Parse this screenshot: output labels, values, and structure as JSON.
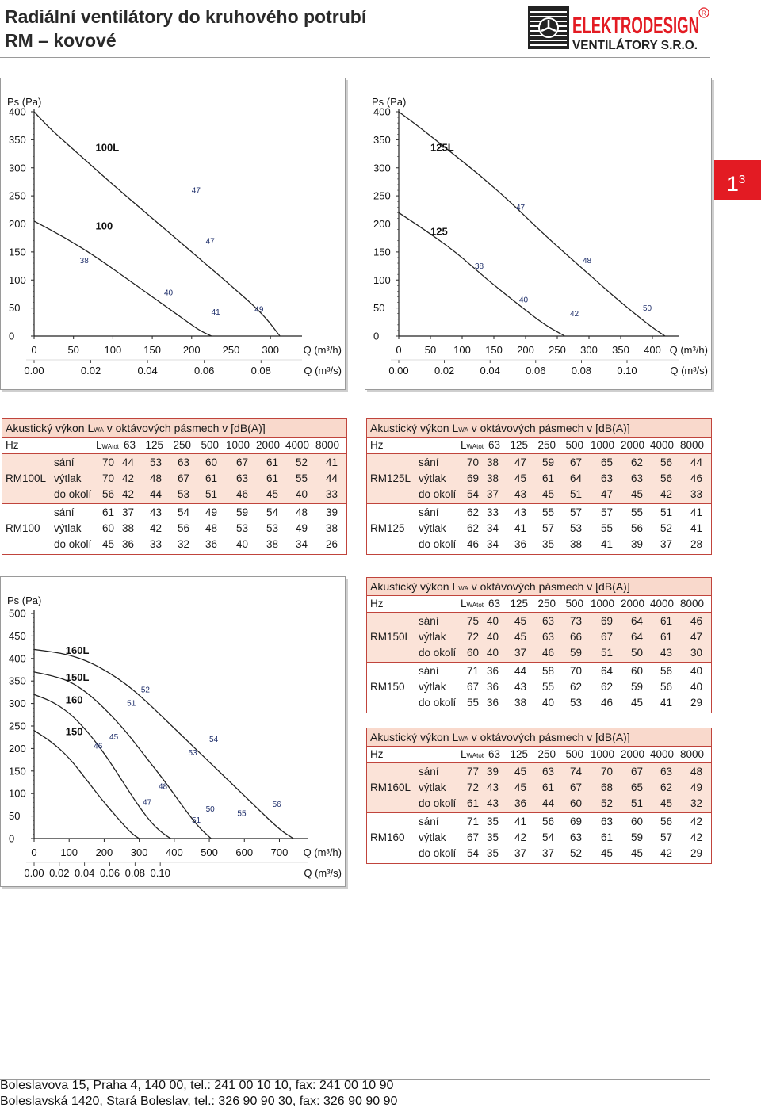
{
  "header": {
    "title_line1": "Radiální ventilátory do kruhového potrubí",
    "title_line2": "RM – kovové",
    "logo_brand": "ELEKTRODESIGN",
    "logo_sub": "VENTILÁTORY S.R.O.",
    "logo_registered": "R"
  },
  "page_badge": {
    "main": "1",
    "sup": "3"
  },
  "chart_data": [
    {
      "type": "line",
      "ylabel": "Ps (Pa)",
      "y_ticks": [
        "0",
        "50",
        "100",
        "150",
        "200",
        "250",
        "300",
        "350",
        "400"
      ],
      "x_ticks_m3h": [
        "0",
        "50",
        "100",
        "150",
        "200",
        "250",
        "300"
      ],
      "x_label_m3h": "Q (m³/h)",
      "x_ticks_m3s": [
        "0.00",
        "0.02",
        "0.04",
        "0.06",
        "0.08"
      ],
      "x_label_m3s": "Q (m³/s)",
      "xlim": [
        0,
        330
      ],
      "ylim": [
        0,
        400
      ],
      "series": [
        {
          "name": "100L",
          "x": [
            0,
            20,
            60,
            100,
            150,
            200,
            250,
            290,
            312
          ],
          "y": [
            400,
            370,
            320,
            270,
            210,
            150,
            90,
            40,
            0
          ]
        },
        {
          "name": "100",
          "x": [
            0,
            40,
            80,
            120,
            160,
            190,
            210,
            225
          ],
          "y": [
            205,
            175,
            140,
            100,
            60,
            30,
            10,
            0
          ]
        }
      ],
      "annotations": [
        {
          "text": "100L",
          "x": 78,
          "y": 330
        },
        {
          "text": "100",
          "x": 78,
          "y": 190
        },
        {
          "text": "47",
          "x": 200,
          "y": 255
        },
        {
          "text": "47",
          "x": 218,
          "y": 165
        },
        {
          "text": "38",
          "x": 58,
          "y": 130
        },
        {
          "text": "40",
          "x": 165,
          "y": 73
        },
        {
          "text": "41",
          "x": 225,
          "y": 38
        },
        {
          "text": "49",
          "x": 280,
          "y": 43
        }
      ]
    },
    {
      "type": "line",
      "ylabel": "Ps (Pa)",
      "y_ticks": [
        "0",
        "50",
        "100",
        "150",
        "200",
        "250",
        "300",
        "350",
        "400"
      ],
      "x_ticks_m3h": [
        "0",
        "50",
        "100",
        "150",
        "200",
        "250",
        "300",
        "350",
        "400"
      ],
      "x_label_m3h": "Q (m³/h)",
      "x_ticks_m3s": [
        "0.00",
        "0.02",
        "0.04",
        "0.06",
        "0.08",
        "0.10"
      ],
      "x_label_m3s": "Q (m³/s)",
      "xlim": [
        0,
        430
      ],
      "ylim": [
        0,
        400
      ],
      "series": [
        {
          "name": "125L",
          "x": [
            0,
            30,
            80,
            130,
            180,
            230,
            290,
            350,
            400,
            420
          ],
          "y": [
            400,
            375,
            330,
            285,
            235,
            180,
            120,
            60,
            15,
            0
          ]
        },
        {
          "name": "125",
          "x": [
            0,
            40,
            90,
            140,
            190,
            230,
            262
          ],
          "y": [
            220,
            190,
            150,
            100,
            55,
            20,
            0
          ]
        }
      ],
      "annotations": [
        {
          "text": "125L",
          "x": 50,
          "y": 330
        },
        {
          "text": "125",
          "x": 50,
          "y": 180
        },
        {
          "text": "47",
          "x": 185,
          "y": 225
        },
        {
          "text": "48",
          "x": 290,
          "y": 130
        },
        {
          "text": "38",
          "x": 120,
          "y": 120
        },
        {
          "text": "40",
          "x": 190,
          "y": 60
        },
        {
          "text": "42",
          "x": 270,
          "y": 35
        },
        {
          "text": "50",
          "x": 385,
          "y": 45
        }
      ]
    },
    {
      "type": "line",
      "ylabel": "Ps (Pa)",
      "y_ticks": [
        "0",
        "50",
        "100",
        "150",
        "200",
        "250",
        "300",
        "350",
        "400",
        "450",
        "500"
      ],
      "x_ticks_m3h": [
        "0",
        "100",
        "200",
        "300",
        "400",
        "500",
        "600",
        "700"
      ],
      "x_label_m3h": "Q (m³/h)",
      "x_ticks_m3s": [
        "0.00",
        "0.02",
        "0.04",
        "0.06",
        "0.08",
        "0.10"
      ],
      "x_label_m3s": "Q (m³/s)",
      "xlim": [
        0,
        760
      ],
      "ylim": [
        0,
        500
      ],
      "series": [
        {
          "name": "160L",
          "x": [
            0,
            50,
            100,
            150,
            200,
            260,
            320,
            380,
            440,
            500,
            560,
            620,
            700,
            740
          ],
          "y": [
            420,
            415,
            408,
            395,
            375,
            345,
            305,
            260,
            215,
            170,
            125,
            80,
            20,
            0
          ]
        },
        {
          "name": "150L",
          "x": [
            0,
            50,
            100,
            150,
            200,
            260,
            320,
            380,
            430,
            470,
            505
          ],
          "y": [
            370,
            362,
            350,
            325,
            290,
            240,
            180,
            120,
            65,
            25,
            0
          ]
        },
        {
          "name": "160",
          "x": [
            0,
            50,
            100,
            150,
            200,
            250,
            300,
            340,
            370,
            390
          ],
          "y": [
            320,
            305,
            280,
            240,
            190,
            130,
            70,
            30,
            10,
            0
          ]
        },
        {
          "name": "150",
          "x": [
            0,
            50,
            100,
            150,
            200,
            250,
            280,
            300
          ],
          "y": [
            240,
            215,
            180,
            130,
            80,
            35,
            10,
            0
          ]
        }
      ],
      "annotations": [
        {
          "text": "160L",
          "x": 90,
          "y": 410
        },
        {
          "text": "150L",
          "x": 90,
          "y": 350
        },
        {
          "text": "160",
          "x": 90,
          "y": 300
        },
        {
          "text": "150",
          "x": 90,
          "y": 230
        },
        {
          "text": "52",
          "x": 305,
          "y": 325
        },
        {
          "text": "51",
          "x": 265,
          "y": 295
        },
        {
          "text": "45",
          "x": 215,
          "y": 220
        },
        {
          "text": "46",
          "x": 170,
          "y": 200
        },
        {
          "text": "54",
          "x": 500,
          "y": 215
        },
        {
          "text": "53",
          "x": 440,
          "y": 185
        },
        {
          "text": "48",
          "x": 355,
          "y": 110
        },
        {
          "text": "47",
          "x": 310,
          "y": 75
        },
        {
          "text": "50",
          "x": 490,
          "y": 60
        },
        {
          "text": "55",
          "x": 580,
          "y": 50
        },
        {
          "text": "56",
          "x": 680,
          "y": 70
        },
        {
          "text": "51",
          "x": 450,
          "y": 35
        }
      ]
    }
  ],
  "tables": [
    {
      "title_prefix": "Akustický výkon L",
      "title_sub": "WA",
      "title_suffix": " v oktávových pásmech v [dB(A)]",
      "hz_label": "Hz",
      "lw_prefix": "L",
      "lw_sub": "WAtot",
      "bands": [
        "63",
        "125",
        "250",
        "500",
        "1000",
        "2000",
        "4000",
        "8000"
      ],
      "groups": [
        {
          "model": "RM100L",
          "rows": [
            {
              "label": "sání",
              "tot": "70",
              "vals": [
                "44",
                "53",
                "63",
                "60",
                "67",
                "61",
                "52",
                "41"
              ]
            },
            {
              "label": "výtlak",
              "tot": "70",
              "vals": [
                "42",
                "48",
                "67",
                "61",
                "63",
                "61",
                "55",
                "44"
              ]
            },
            {
              "label": "do okolí",
              "tot": "56",
              "vals": [
                "42",
                "44",
                "53",
                "51",
                "46",
                "45",
                "40",
                "33"
              ]
            }
          ]
        },
        {
          "model": "RM100",
          "rows": [
            {
              "label": "sání",
              "tot": "61",
              "vals": [
                "37",
                "43",
                "54",
                "49",
                "59",
                "54",
                "48",
                "39"
              ]
            },
            {
              "label": "výtlak",
              "tot": "60",
              "vals": [
                "38",
                "42",
                "56",
                "48",
                "53",
                "53",
                "49",
                "38"
              ]
            },
            {
              "label": "do okolí",
              "tot": "45",
              "vals": [
                "36",
                "33",
                "32",
                "36",
                "40",
                "38",
                "34",
                "26"
              ]
            }
          ]
        }
      ]
    },
    {
      "title_prefix": "Akustický výkon L",
      "title_sub": "WA",
      "title_suffix": " v oktávových pásmech v [dB(A)]",
      "hz_label": "Hz",
      "lw_prefix": "L",
      "lw_sub": "WAtot",
      "bands": [
        "63",
        "125",
        "250",
        "500",
        "1000",
        "2000",
        "4000",
        "8000"
      ],
      "groups": [
        {
          "model": "RM125L",
          "rows": [
            {
              "label": "sání",
              "tot": "70",
              "vals": [
                "38",
                "47",
                "59",
                "67",
                "65",
                "62",
                "56",
                "44"
              ]
            },
            {
              "label": "výtlak",
              "tot": "69",
              "vals": [
                "38",
                "45",
                "61",
                "64",
                "63",
                "63",
                "56",
                "46"
              ]
            },
            {
              "label": "do okolí",
              "tot": "54",
              "vals": [
                "37",
                "43",
                "45",
                "51",
                "47",
                "45",
                "42",
                "33"
              ]
            }
          ]
        },
        {
          "model": "RM125",
          "rows": [
            {
              "label": "sání",
              "tot": "62",
              "vals": [
                "33",
                "43",
                "55",
                "57",
                "57",
                "55",
                "51",
                "41"
              ]
            },
            {
              "label": "výtlak",
              "tot": "62",
              "vals": [
                "34",
                "41",
                "57",
                "53",
                "55",
                "56",
                "52",
                "41"
              ]
            },
            {
              "label": "do okolí",
              "tot": "46",
              "vals": [
                "34",
                "36",
                "35",
                "38",
                "41",
                "39",
                "37",
                "28"
              ]
            }
          ]
        }
      ]
    },
    {
      "title_prefix": "Akustický výkon L",
      "title_sub": "WA",
      "title_suffix": " v oktávových pásmech v [dB(A)]",
      "hz_label": "Hz",
      "lw_prefix": "L",
      "lw_sub": "WAtot",
      "bands": [
        "63",
        "125",
        "250",
        "500",
        "1000",
        "2000",
        "4000",
        "8000"
      ],
      "groups": [
        {
          "model": "RM150L",
          "rows": [
            {
              "label": "sání",
              "tot": "75",
              "vals": [
                "40",
                "45",
                "63",
                "73",
                "69",
                "64",
                "61",
                "46"
              ]
            },
            {
              "label": "výtlak",
              "tot": "72",
              "vals": [
                "40",
                "45",
                "63",
                "66",
                "67",
                "64",
                "61",
                "47"
              ]
            },
            {
              "label": "do okolí",
              "tot": "60",
              "vals": [
                "40",
                "37",
                "46",
                "59",
                "51",
                "50",
                "43",
                "30"
              ]
            }
          ]
        },
        {
          "model": "RM150",
          "rows": [
            {
              "label": "sání",
              "tot": "71",
              "vals": [
                "36",
                "44",
                "58",
                "70",
                "64",
                "60",
                "56",
                "40"
              ]
            },
            {
              "label": "výtlak",
              "tot": "67",
              "vals": [
                "36",
                "43",
                "55",
                "62",
                "62",
                "59",
                "56",
                "40"
              ]
            },
            {
              "label": "do okolí",
              "tot": "55",
              "vals": [
                "36",
                "38",
                "40",
                "53",
                "46",
                "45",
                "41",
                "29"
              ]
            }
          ]
        }
      ]
    },
    {
      "title_prefix": "Akustický výkon L",
      "title_sub": "WA",
      "title_suffix": " v oktávových pásmech v [dB(A)]",
      "hz_label": "Hz",
      "lw_prefix": "L",
      "lw_sub": "WAtot",
      "bands": [
        "63",
        "125",
        "250",
        "500",
        "1000",
        "2000",
        "4000",
        "8000"
      ],
      "groups": [
        {
          "model": "RM160L",
          "rows": [
            {
              "label": "sání",
              "tot": "77",
              "vals": [
                "39",
                "45",
                "63",
                "74",
                "70",
                "67",
                "63",
                "48"
              ]
            },
            {
              "label": "výtlak",
              "tot": "72",
              "vals": [
                "43",
                "45",
                "61",
                "67",
                "68",
                "65",
                "62",
                "49"
              ]
            },
            {
              "label": "do okolí",
              "tot": "61",
              "vals": [
                "43",
                "36",
                "44",
                "60",
                "52",
                "51",
                "45",
                "32"
              ]
            }
          ]
        },
        {
          "model": "RM160",
          "rows": [
            {
              "label": "sání",
              "tot": "71",
              "vals": [
                "35",
                "41",
                "56",
                "69",
                "63",
                "60",
                "56",
                "42"
              ]
            },
            {
              "label": "výtlak",
              "tot": "67",
              "vals": [
                "35",
                "42",
                "54",
                "63",
                "61",
                "59",
                "57",
                "42"
              ]
            },
            {
              "label": "do okolí",
              "tot": "54",
              "vals": [
                "35",
                "37",
                "37",
                "52",
                "45",
                "45",
                "42",
                "29"
              ]
            }
          ]
        }
      ]
    }
  ],
  "footer": {
    "line1": "Boleslavova 15, Praha 4, 140 00, tel.: 241 00 10 10, fax: 241 00 10 90",
    "line2": "Boleslavská 1420, Stará Boleslav, tel.: 326 90 90 30, fax: 326 90 90 90"
  }
}
